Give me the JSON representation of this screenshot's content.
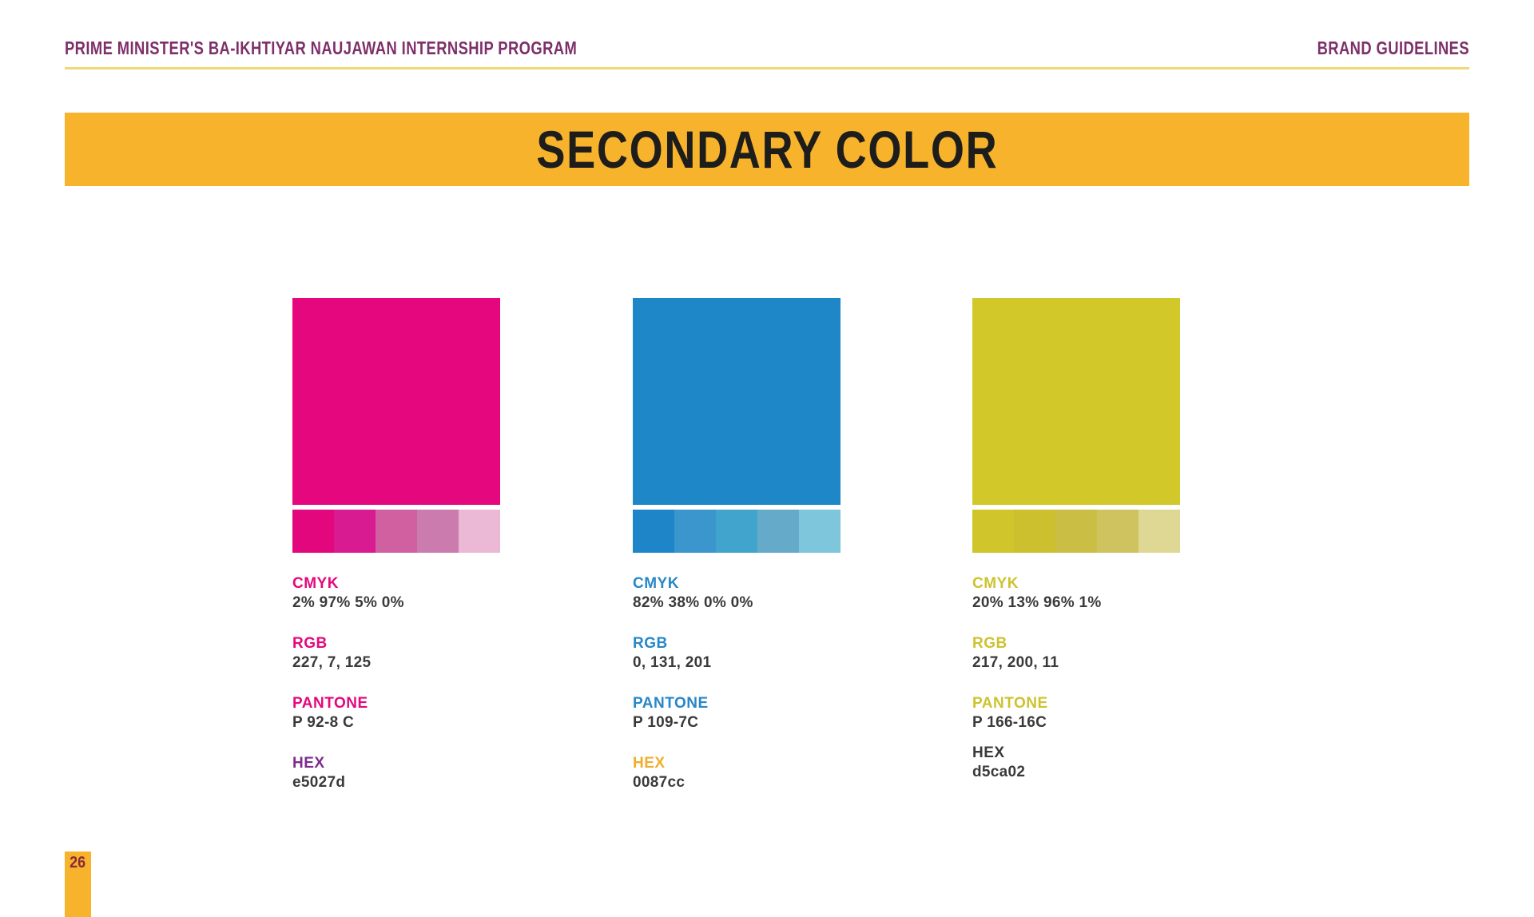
{
  "header": {
    "program_title": "PRIME MINISTER'S BA-IKHTIYAR NAUJAWAN INTERNSHIP PROGRAM",
    "document_title": "BRAND GUIDELINES",
    "text_color": "#7D3069",
    "underline_color": "#F0D87A"
  },
  "banner": {
    "title": "SECONDARY COLOR",
    "background": "#F7B32C",
    "text_color": "#1D1D1B"
  },
  "footer": {
    "page_number": "26",
    "tab_background": "#F7B32C",
    "text_color": "#8D2B3B"
  },
  "colors": [
    {
      "name": "pink",
      "swatch_hex": "#E5077D",
      "tints": [
        "#E3077D",
        "#D81B90",
        "#D0609F",
        "#CC7BAE",
        "#EBB9D5"
      ],
      "specs": [
        {
          "label": "CMYK",
          "value": "2% 97% 5% 0%",
          "label_color": "#E5077D"
        },
        {
          "label": "RGB",
          "value": "227, 7, 125",
          "label_color": "#E5077D"
        },
        {
          "label": "PANTONE",
          "value": "P 92-8 C",
          "label_color": "#E5077D"
        },
        {
          "label": "HEX",
          "value": "e5027d",
          "label_color": "#7D2C8C"
        }
      ]
    },
    {
      "name": "blue",
      "swatch_hex": "#1E87C8",
      "tints": [
        "#1E86C8",
        "#3B96CE",
        "#41A4CD",
        "#65AAC9",
        "#7DC6DC"
      ],
      "specs": [
        {
          "label": "CMYK",
          "value": "82% 38% 0% 0%",
          "label_color": "#2787C9"
        },
        {
          "label": "RGB",
          "value": "0, 131, 201",
          "label_color": "#2787C9"
        },
        {
          "label": "PANTONE",
          "value": "P 109-7C",
          "label_color": "#2787C9"
        },
        {
          "label": "HEX",
          "value": "0087cc",
          "label_color": "#F0AD2B"
        }
      ]
    },
    {
      "name": "yellow-green",
      "swatch_hex": "#D2C829",
      "tints": [
        "#D0C52A",
        "#CCC02E",
        "#CBBE45",
        "#CFC35F",
        "#DFD794"
      ],
      "specs": [
        {
          "label": "CMYK",
          "value": "20% 13% 96% 1%",
          "label_color": "#CDC32F"
        },
        {
          "label": "RGB",
          "value": "217, 200, 11",
          "label_color": "#CDC32F"
        },
        {
          "label": "PANTONE",
          "value": "P 166-16C",
          "label_color": "#CDC32F"
        },
        {
          "label": "HEX",
          "value": "d5ca02",
          "label_color": "#3A3A3A"
        }
      ]
    }
  ]
}
